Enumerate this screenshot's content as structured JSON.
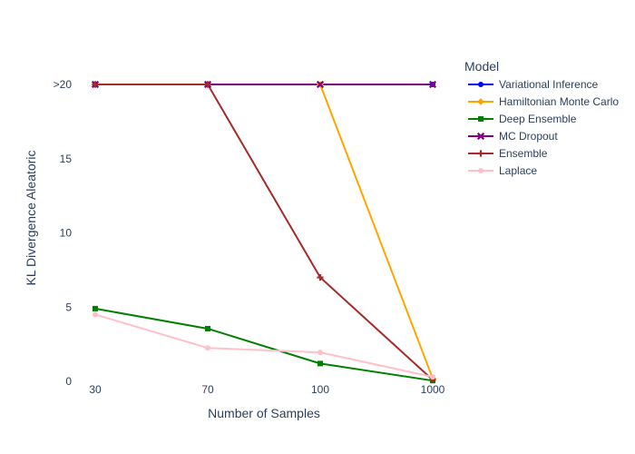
{
  "chart_data": {
    "type": "line",
    "title": "",
    "xlabel": "Number of Samples",
    "ylabel": "KL Divergence Aleatoric",
    "x_axis_type": "category",
    "categories": [
      "30",
      "70",
      "100",
      "1000"
    ],
    "y_ticks": [
      {
        "value": 0,
        "label": "0"
      },
      {
        "value": 5,
        "label": "5"
      },
      {
        "value": 10,
        "label": "10"
      },
      {
        "value": 15,
        "label": "15"
      },
      {
        "value": 20,
        "label": ">20"
      }
    ],
    "ylim": [
      0,
      20
    ],
    "grid": false,
    "legend_title": "Model",
    "legend_position": "right",
    "series": [
      {
        "name": "Variational Inference",
        "color": "#0000ff",
        "marker": "circle",
        "values": [
          20,
          20,
          20,
          20
        ]
      },
      {
        "name": "Hamiltonian Monte Carlo",
        "color": "#ffa500",
        "marker": "diamond",
        "values": [
          20,
          20,
          20,
          0.2
        ]
      },
      {
        "name": "Deep Ensemble",
        "color": "#008000",
        "marker": "square",
        "values": [
          4.9,
          3.55,
          1.2,
          0.05
        ]
      },
      {
        "name": "MC Dropout",
        "color": "#800080",
        "marker": "x",
        "values": [
          20,
          20,
          20,
          20
        ]
      },
      {
        "name": "Ensemble",
        "color": "#a52a2a",
        "marker": "cross",
        "values": [
          20,
          20,
          7.0,
          0.1
        ]
      },
      {
        "name": "Laplace",
        "color": "#ffc0cb",
        "marker": "circle",
        "values": [
          4.5,
          2.25,
          1.95,
          0.3
        ]
      }
    ]
  }
}
